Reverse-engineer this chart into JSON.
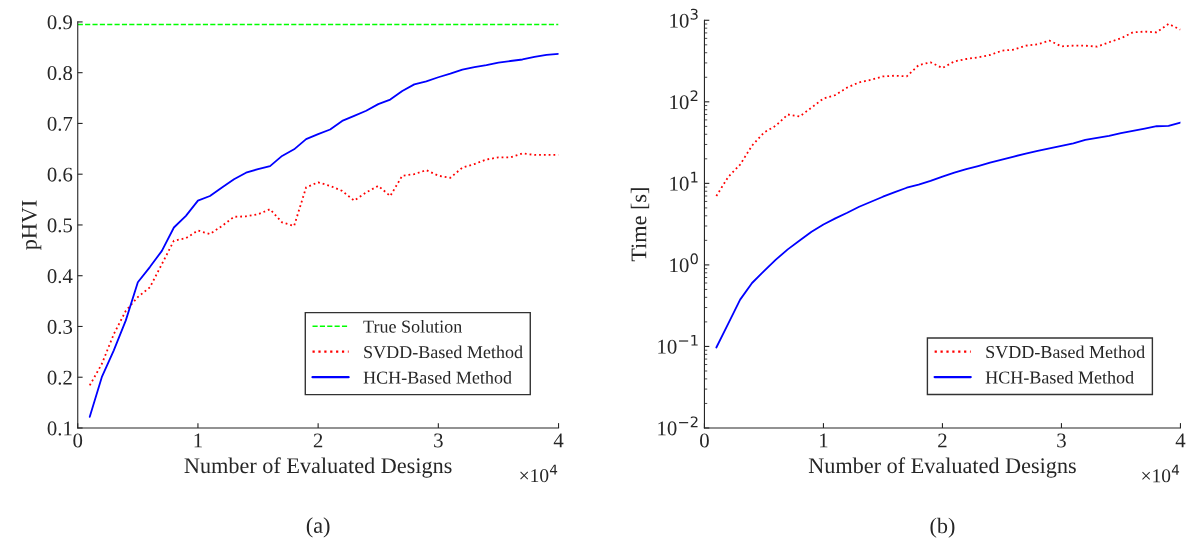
{
  "chart_data": [
    {
      "type": "line",
      "title": "(a)",
      "xlabel": "Number of Evaluated Designs",
      "ylabel": "pHVI",
      "x": [
        0.1,
        0.2,
        0.3,
        0.4,
        0.5,
        0.6,
        0.7,
        0.8,
        0.9,
        1.0,
        1.1,
        1.2,
        1.3,
        1.4,
        1.5,
        1.6,
        1.7,
        1.8,
        1.9,
        2.0,
        2.1,
        2.2,
        2.3,
        2.4,
        2.5,
        2.6,
        2.7,
        2.8,
        2.9,
        3.0,
        3.1,
        3.2,
        3.3,
        3.4,
        3.5,
        3.6,
        3.7,
        3.8,
        3.9,
        4.0
      ],
      "series": [
        {
          "name": "SVDD-Based Method",
          "color": "#ff0000",
          "line_style": "dotted",
          "values": [
            0.184,
            0.226,
            0.285,
            0.331,
            0.358,
            0.377,
            0.423,
            0.469,
            0.474,
            0.489,
            0.482,
            0.498,
            0.516,
            0.517,
            0.521,
            0.531,
            0.505,
            0.498,
            0.574,
            0.584,
            0.577,
            0.567,
            0.548,
            0.564,
            0.577,
            0.557,
            0.597,
            0.6,
            0.608,
            0.597,
            0.593,
            0.613,
            0.62,
            0.629,
            0.633,
            0.633,
            0.641,
            0.638,
            0.638,
            0.638
          ]
        },
        {
          "name": "HCH-Based Method",
          "color": "#0000ff",
          "line_style": "solid",
          "values": [
            0.122,
            0.2,
            0.253,
            0.312,
            0.387,
            0.417,
            0.449,
            0.495,
            0.518,
            0.548,
            0.557,
            0.574,
            0.59,
            0.603,
            0.61,
            0.616,
            0.636,
            0.649,
            0.669,
            0.679,
            0.688,
            0.705,
            0.715,
            0.725,
            0.738,
            0.747,
            0.764,
            0.777,
            0.783,
            0.791,
            0.798,
            0.806,
            0.811,
            0.815,
            0.82,
            0.823,
            0.826,
            0.831,
            0.835,
            0.837
          ]
        }
      ],
      "ref_lines": [
        {
          "axis": "y",
          "value": 0.895,
          "label": "True Solution",
          "color": "#00ff00",
          "line_style": "dashed"
        }
      ],
      "xlim": [
        0,
        4
      ],
      "xticks": [
        0,
        1,
        2,
        3,
        4
      ],
      "ylim": [
        0.1,
        0.9
      ],
      "yticks": [
        0.1,
        0.2,
        0.3,
        0.4,
        0.5,
        0.6,
        0.7,
        0.8,
        0.9
      ],
      "annotations": [
        "×10$^{4}$"
      ],
      "legend": "bottom right",
      "grid": false
    },
    {
      "type": "line",
      "title": "(b)",
      "xlabel": "Number of Evaluated Designs",
      "ylabel": "Time [s]",
      "log": "y",
      "x": [
        0.1,
        0.2,
        0.3,
        0.4,
        0.5,
        0.6,
        0.7,
        0.8,
        0.9,
        1.0,
        1.1,
        1.2,
        1.3,
        1.4,
        1.5,
        1.6,
        1.7,
        1.8,
        1.9,
        2.0,
        2.1,
        2.2,
        2.3,
        2.4,
        2.5,
        2.6,
        2.7,
        2.8,
        2.9,
        3.0,
        3.1,
        3.2,
        3.3,
        3.4,
        3.5,
        3.6,
        3.7,
        3.8,
        3.9,
        4.0
      ],
      "series": [
        {
          "name": "SVDD-Based Method",
          "color": "#ff0000",
          "line_style": "dotted",
          "values": [
            7,
            12,
            17,
            29,
            42,
            51,
            70,
            66,
            85,
            110,
            121,
            150,
            173,
            186,
            205,
            209,
            205,
            282,
            305,
            260,
            313,
            335,
            351,
            375,
            424,
            436,
            488,
            507,
            562,
            479,
            488,
            488,
            475,
            537,
            601,
            711,
            726,
            711,
            901,
            768
          ]
        },
        {
          "name": "HCH-Based Method",
          "color": "#0000ff",
          "line_style": "solid",
          "values": [
            0.097,
            0.19,
            0.375,
            0.6,
            0.84,
            1.16,
            1.55,
            1.99,
            2.55,
            3.13,
            3.72,
            4.36,
            5.16,
            5.95,
            6.86,
            7.82,
            8.84,
            9.63,
            10.7,
            12.1,
            13.5,
            14.9,
            16.3,
            17.9,
            19.5,
            21.3,
            23.2,
            25.0,
            26.9,
            28.8,
            31.0,
            34.1,
            36.1,
            38.2,
            41.2,
            44.0,
            47.0,
            50.2,
            50.7,
            55.7
          ]
        }
      ],
      "xlim": [
        0,
        4
      ],
      "xticks": [
        0,
        1,
        2,
        3,
        4
      ],
      "ylim": [
        0.01,
        1000
      ],
      "yticks": [
        {
          "value": 0.01,
          "label": "10$^{−2}$"
        },
        {
          "value": 0.1,
          "label": "10$^{−1}$"
        },
        {
          "value": 1,
          "label": "10$^{0}$"
        },
        {
          "value": 10,
          "label": "10$^{1}$"
        },
        {
          "value": 100,
          "label": "10$^{2}$"
        },
        {
          "value": 1000,
          "label": "10$^{3}$"
        }
      ],
      "annotations": [
        "×10$^{4}$"
      ],
      "legend": "bottom right",
      "grid": false
    }
  ]
}
